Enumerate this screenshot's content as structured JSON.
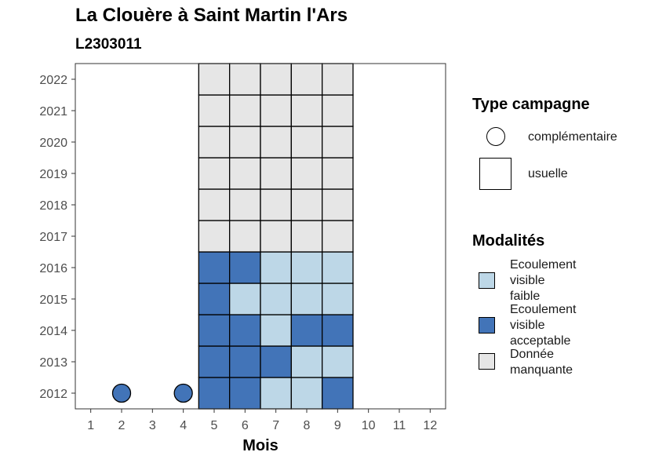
{
  "header": {
    "title": "La Clouère à Saint Martin l'Ars",
    "subtitle": "L2303011"
  },
  "chart_data": {
    "type": "heatmap",
    "title": "La Clouère à Saint Martin l'Ars",
    "subtitle": "L2303011",
    "xlabel": "Mois",
    "ylabel": "",
    "x_ticks": [
      1,
      2,
      3,
      4,
      5,
      6,
      7,
      8,
      9,
      10,
      11,
      12
    ],
    "y_ticks": [
      2012,
      2013,
      2014,
      2015,
      2016,
      2017,
      2018,
      2019,
      2020,
      2021,
      2022
    ],
    "xlim": [
      0.5,
      12.5
    ],
    "ylim": [
      2011.5,
      2022.5
    ],
    "grid": false,
    "legend_position": "right",
    "modalities": [
      {
        "key": "faible",
        "label": "Ecoulement\nvisible\nfaible",
        "color": "#bdd7e7"
      },
      {
        "key": "acceptable",
        "label": "Ecoulement\nvisible\nacceptable",
        "color": "#4274b8"
      },
      {
        "key": "manquante",
        "label": "Donnée\nmanquante",
        "color": "#e6e6e6"
      }
    ],
    "campaign_types": [
      {
        "key": "complementaire",
        "label": "complémentaire",
        "shape": "circle"
      },
      {
        "key": "usuelle",
        "label": "usuelle",
        "shape": "square"
      }
    ],
    "cells": [
      {
        "year": 2012,
        "month": 2,
        "type": "complementaire",
        "mod": "acceptable"
      },
      {
        "year": 2012,
        "month": 4,
        "type": "complementaire",
        "mod": "acceptable"
      },
      {
        "year": 2012,
        "month": 5,
        "type": "usuelle",
        "mod": "acceptable"
      },
      {
        "year": 2012,
        "month": 6,
        "type": "usuelle",
        "mod": "acceptable"
      },
      {
        "year": 2012,
        "month": 7,
        "type": "usuelle",
        "mod": "faible"
      },
      {
        "year": 2012,
        "month": 8,
        "type": "usuelle",
        "mod": "faible"
      },
      {
        "year": 2012,
        "month": 9,
        "type": "usuelle",
        "mod": "acceptable"
      },
      {
        "year": 2013,
        "month": 5,
        "type": "usuelle",
        "mod": "acceptable"
      },
      {
        "year": 2013,
        "month": 6,
        "type": "usuelle",
        "mod": "acceptable"
      },
      {
        "year": 2013,
        "month": 7,
        "type": "usuelle",
        "mod": "acceptable"
      },
      {
        "year": 2013,
        "month": 8,
        "type": "usuelle",
        "mod": "faible"
      },
      {
        "year": 2013,
        "month": 9,
        "type": "usuelle",
        "mod": "faible"
      },
      {
        "year": 2014,
        "month": 5,
        "type": "usuelle",
        "mod": "acceptable"
      },
      {
        "year": 2014,
        "month": 6,
        "type": "usuelle",
        "mod": "acceptable"
      },
      {
        "year": 2014,
        "month": 7,
        "type": "usuelle",
        "mod": "faible"
      },
      {
        "year": 2014,
        "month": 8,
        "type": "usuelle",
        "mod": "acceptable"
      },
      {
        "year": 2014,
        "month": 9,
        "type": "usuelle",
        "mod": "acceptable"
      },
      {
        "year": 2015,
        "month": 5,
        "type": "usuelle",
        "mod": "acceptable"
      },
      {
        "year": 2015,
        "month": 6,
        "type": "usuelle",
        "mod": "faible"
      },
      {
        "year": 2015,
        "month": 7,
        "type": "usuelle",
        "mod": "faible"
      },
      {
        "year": 2015,
        "month": 8,
        "type": "usuelle",
        "mod": "faible"
      },
      {
        "year": 2015,
        "month": 9,
        "type": "usuelle",
        "mod": "faible"
      },
      {
        "year": 2016,
        "month": 5,
        "type": "usuelle",
        "mod": "acceptable"
      },
      {
        "year": 2016,
        "month": 6,
        "type": "usuelle",
        "mod": "acceptable"
      },
      {
        "year": 2016,
        "month": 7,
        "type": "usuelle",
        "mod": "faible"
      },
      {
        "year": 2016,
        "month": 8,
        "type": "usuelle",
        "mod": "faible"
      },
      {
        "year": 2016,
        "month": 9,
        "type": "usuelle",
        "mod": "faible"
      },
      {
        "year": 2017,
        "month": 5,
        "type": "usuelle",
        "mod": "manquante"
      },
      {
        "year": 2017,
        "month": 6,
        "type": "usuelle",
        "mod": "manquante"
      },
      {
        "year": 2017,
        "month": 7,
        "type": "usuelle",
        "mod": "manquante"
      },
      {
        "year": 2017,
        "month": 8,
        "type": "usuelle",
        "mod": "manquante"
      },
      {
        "year": 2017,
        "month": 9,
        "type": "usuelle",
        "mod": "manquante"
      },
      {
        "year": 2018,
        "month": 5,
        "type": "usuelle",
        "mod": "manquante"
      },
      {
        "year": 2018,
        "month": 6,
        "type": "usuelle",
        "mod": "manquante"
      },
      {
        "year": 2018,
        "month": 7,
        "type": "usuelle",
        "mod": "manquante"
      },
      {
        "year": 2018,
        "month": 8,
        "type": "usuelle",
        "mod": "manquante"
      },
      {
        "year": 2018,
        "month": 9,
        "type": "usuelle",
        "mod": "manquante"
      },
      {
        "year": 2019,
        "month": 5,
        "type": "usuelle",
        "mod": "manquante"
      },
      {
        "year": 2019,
        "month": 6,
        "type": "usuelle",
        "mod": "manquante"
      },
      {
        "year": 2019,
        "month": 7,
        "type": "usuelle",
        "mod": "manquante"
      },
      {
        "year": 2019,
        "month": 8,
        "type": "usuelle",
        "mod": "manquante"
      },
      {
        "year": 2019,
        "month": 9,
        "type": "usuelle",
        "mod": "manquante"
      },
      {
        "year": 2020,
        "month": 5,
        "type": "usuelle",
        "mod": "manquante"
      },
      {
        "year": 2020,
        "month": 6,
        "type": "usuelle",
        "mod": "manquante"
      },
      {
        "year": 2020,
        "month": 7,
        "type": "usuelle",
        "mod": "manquante"
      },
      {
        "year": 2020,
        "month": 8,
        "type": "usuelle",
        "mod": "manquante"
      },
      {
        "year": 2020,
        "month": 9,
        "type": "usuelle",
        "mod": "manquante"
      },
      {
        "year": 2021,
        "month": 5,
        "type": "usuelle",
        "mod": "manquante"
      },
      {
        "year": 2021,
        "month": 6,
        "type": "usuelle",
        "mod": "manquante"
      },
      {
        "year": 2021,
        "month": 7,
        "type": "usuelle",
        "mod": "manquante"
      },
      {
        "year": 2021,
        "month": 8,
        "type": "usuelle",
        "mod": "manquante"
      },
      {
        "year": 2021,
        "month": 9,
        "type": "usuelle",
        "mod": "manquante"
      },
      {
        "year": 2022,
        "month": 5,
        "type": "usuelle",
        "mod": "manquante"
      },
      {
        "year": 2022,
        "month": 6,
        "type": "usuelle",
        "mod": "manquante"
      },
      {
        "year": 2022,
        "month": 7,
        "type": "usuelle",
        "mod": "manquante"
      },
      {
        "year": 2022,
        "month": 8,
        "type": "usuelle",
        "mod": "manquante"
      },
      {
        "year": 2022,
        "month": 9,
        "type": "usuelle",
        "mod": "manquante"
      }
    ]
  },
  "legend": {
    "type_title": "Type campagne",
    "type_items": [
      {
        "label": "complémentaire"
      },
      {
        "label": "usuelle"
      }
    ],
    "modalite_title": "Modalités",
    "modalite_items": [
      {
        "label": "Ecoulement\nvisible\nfaible",
        "color": "#bdd7e7"
      },
      {
        "label": "Ecoulement\nvisible\nacceptable",
        "color": "#4274b8"
      },
      {
        "label": "Donnée\nmanquante",
        "color": "#e6e6e6"
      }
    ]
  }
}
